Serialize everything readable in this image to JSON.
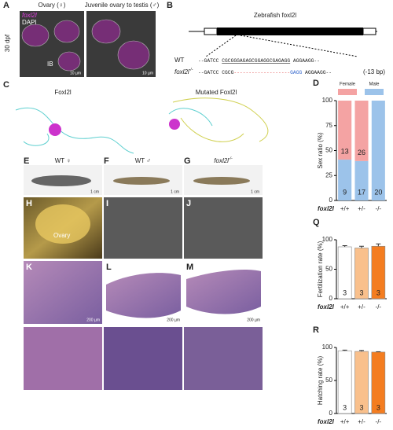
{
  "panels": {
    "A": {
      "label": "A",
      "titles": [
        "Ovary (♀)",
        "Juvenile ovary to testis (♂)"
      ],
      "stain_labels": [
        "foxl2l",
        "DAPI"
      ],
      "side_label": "30 dpf",
      "annotation": "IB",
      "scale_bars": [
        "10 µm",
        "10 µm"
      ]
    },
    "B": {
      "label": "B",
      "gene": "Zebrafish foxl2l",
      "wt_name": "WT",
      "wt_seq": [
        "--GATCC ",
        "CGCGGGAGAGCGGAGGCGAGAGG",
        " AGGAAGG--"
      ],
      "mut_name": "foxl2l",
      "mut_sup": "-/-",
      "mut_seq": [
        "--GATCC ",
        "CGCG",
        "-------------------",
        "GAGG",
        " AGGAAGG--"
      ],
      "mut_note": "(-13 bp)"
    },
    "C": {
      "label": "C",
      "titles": [
        "Foxl2l",
        "Mutated Foxl2l"
      ]
    },
    "E": {
      "label": "E",
      "title": "WT ♀",
      "scale_bar": "1 cm"
    },
    "F": {
      "label": "F",
      "title": "WT ♂",
      "scale_bar": "1 cm"
    },
    "G": {
      "label": "G",
      "title": "foxl2l",
      "sup": "-/-",
      "scale_bar": "1 cm"
    },
    "H": {
      "label": "H",
      "annotation": "Ovary"
    },
    "I": {
      "label": "I"
    },
    "J": {
      "label": "J"
    },
    "K": {
      "label": "K",
      "scale_bar": "200 µm"
    },
    "L": {
      "label": "L",
      "scale_bar": "200 µm"
    },
    "M": {
      "label": "M",
      "scale_bar": "200 µm"
    }
  },
  "chart_data": [
    {
      "type": "stacked_bar",
      "panel": "D",
      "ylabel": "Sex ratio (%)",
      "xname": "foxl2l",
      "categories": [
        "+/+",
        "+/-",
        "-/-"
      ],
      "series": [
        {
          "name": "Female",
          "color": "#f4a3a3",
          "values": [
            59.1,
            60.5,
            0
          ],
          "counts": [
            13,
            26,
            null
          ]
        },
        {
          "name": "Male",
          "color": "#9cc3ea",
          "values": [
            40.9,
            39.5,
            100
          ],
          "counts": [
            9,
            17,
            20
          ]
        }
      ],
      "ylim": [
        0,
        100
      ],
      "yticks": [
        0,
        25,
        50,
        75,
        100
      ]
    },
    {
      "type": "bar",
      "panel": "Q",
      "ylabel": "Fertilization rate (%)",
      "xname": "foxl2l",
      "categories": [
        "+/+",
        "+/-",
        "-/-"
      ],
      "values": [
        88,
        86,
        89
      ],
      "errors": [
        2,
        3,
        4
      ],
      "n": [
        3,
        3,
        3
      ],
      "colors": [
        "#ffffff",
        "#f9c08c",
        "#f47d20"
      ],
      "ylim": [
        0,
        100
      ],
      "yticks": [
        0,
        50,
        100
      ]
    },
    {
      "type": "bar",
      "panel": "R",
      "ylabel": "Hatching rate (%)",
      "xname": "foxl2l",
      "categories": [
        "+/+",
        "+/-",
        "-/-"
      ],
      "values": [
        95,
        94,
        93
      ],
      "errors": [
        1,
        1.5,
        0.5
      ],
      "n": [
        3,
        3,
        3
      ],
      "colors": [
        "#ffffff",
        "#f9c08c",
        "#f47d20"
      ],
      "ylim": [
        0,
        100
      ],
      "yticks": [
        0,
        50,
        100
      ]
    }
  ]
}
